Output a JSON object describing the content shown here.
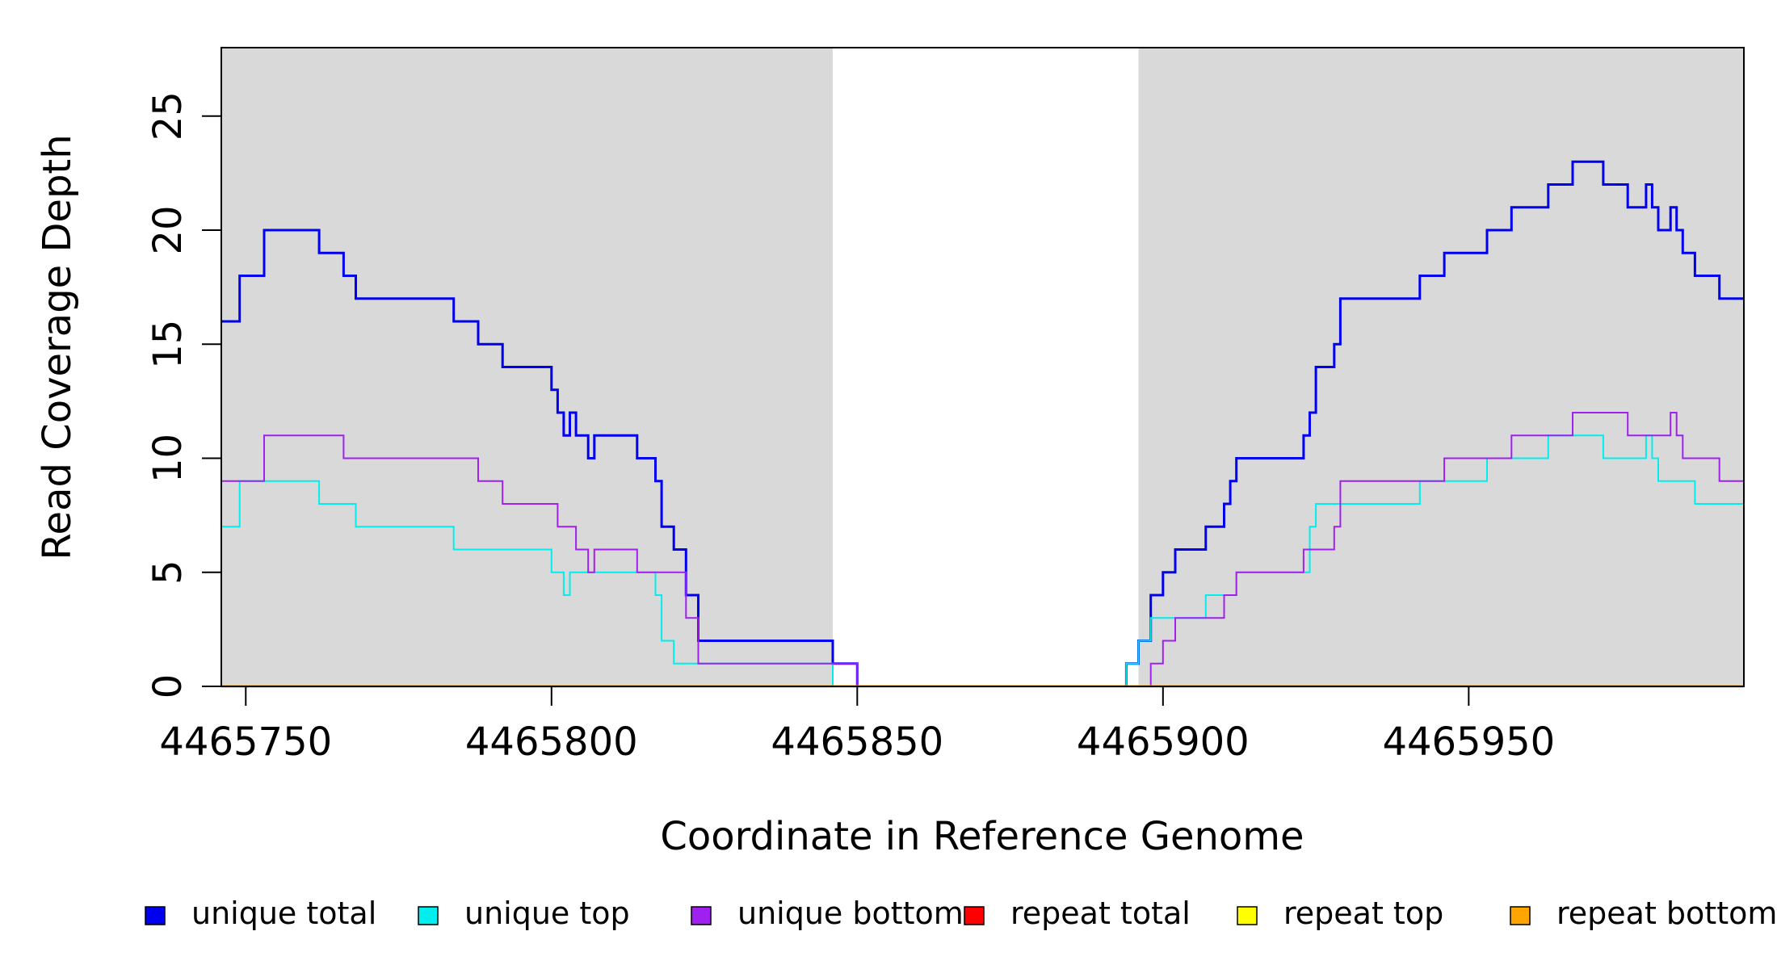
{
  "chart_data": {
    "type": "line",
    "step": true,
    "xlabel": "Coordinate in Reference Genome",
    "ylabel": "Read Coverage Depth",
    "xlim": [
      4465746,
      4465995
    ],
    "ylim": [
      0,
      28
    ],
    "x_ticks": [
      4465750,
      4465800,
      4465850,
      4465900,
      4465950
    ],
    "y_ticks": [
      0,
      5,
      10,
      15,
      20,
      25
    ],
    "shaded_regions": [
      {
        "from": 4465746,
        "to": 4465846,
        "color": "#d9d9d9"
      },
      {
        "from": 4465896,
        "to": 4465995,
        "color": "#d9d9d9"
      }
    ],
    "legend_position": "bottom",
    "series": [
      {
        "name": "unique total",
        "color": "#0000ee",
        "width": 3,
        "points": [
          [
            4465746,
            16
          ],
          [
            4465749,
            18
          ],
          [
            4465753,
            20
          ],
          [
            4465762,
            19
          ],
          [
            4465766,
            18
          ],
          [
            4465768,
            17
          ],
          [
            4465784,
            16
          ],
          [
            4465788,
            15
          ],
          [
            4465792,
            14
          ],
          [
            4465800,
            13
          ],
          [
            4465801,
            12
          ],
          [
            4465802,
            11
          ],
          [
            4465803,
            12
          ],
          [
            4465804,
            11
          ],
          [
            4465806,
            10
          ],
          [
            4465807,
            11
          ],
          [
            4465814,
            10
          ],
          [
            4465817,
            9
          ],
          [
            4465818,
            7
          ],
          [
            4465820,
            6
          ],
          [
            4465822,
            4
          ],
          [
            4465824,
            2
          ],
          [
            4465846,
            1
          ],
          [
            4465850,
            0
          ],
          [
            4465894,
            1
          ],
          [
            4465896,
            2
          ],
          [
            4465898,
            4
          ],
          [
            4465900,
            5
          ],
          [
            4465902,
            6
          ],
          [
            4465907,
            7
          ],
          [
            4465910,
            8
          ],
          [
            4465911,
            9
          ],
          [
            4465912,
            10
          ],
          [
            4465923,
            11
          ],
          [
            4465924,
            12
          ],
          [
            4465925,
            14
          ],
          [
            4465928,
            15
          ],
          [
            4465929,
            17
          ],
          [
            4465942,
            18
          ],
          [
            4465946,
            19
          ],
          [
            4465953,
            20
          ],
          [
            4465957,
            21
          ],
          [
            4465963,
            22
          ],
          [
            4465967,
            23
          ],
          [
            4465972,
            22
          ],
          [
            4465976,
            21
          ],
          [
            4465979,
            22
          ],
          [
            4465980,
            21
          ],
          [
            4465981,
            20
          ],
          [
            4465983,
            21
          ],
          [
            4465984,
            20
          ],
          [
            4465985,
            19
          ],
          [
            4465987,
            18
          ],
          [
            4465991,
            17
          ],
          [
            4465995,
            17
          ]
        ]
      },
      {
        "name": "unique top",
        "color": "#00eeee",
        "width": 2,
        "points": [
          [
            4465746,
            7
          ],
          [
            4465749,
            9
          ],
          [
            4465762,
            8
          ],
          [
            4465768,
            7
          ],
          [
            4465784,
            6
          ],
          [
            4465800,
            5
          ],
          [
            4465802,
            4
          ],
          [
            4465803,
            5
          ],
          [
            4465817,
            4
          ],
          [
            4465818,
            2
          ],
          [
            4465820,
            1
          ],
          [
            4465846,
            0
          ],
          [
            4465894,
            1
          ],
          [
            4465896,
            2
          ],
          [
            4465898,
            3
          ],
          [
            4465903,
            3
          ],
          [
            4465907,
            4
          ],
          [
            4465912,
            5
          ],
          [
            4465924,
            7
          ],
          [
            4465925,
            8
          ],
          [
            4465942,
            9
          ],
          [
            4465953,
            10
          ],
          [
            4465963,
            11
          ],
          [
            4465972,
            10
          ],
          [
            4465979,
            11
          ],
          [
            4465980,
            10
          ],
          [
            4465981,
            9
          ],
          [
            4465987,
            8
          ],
          [
            4465995,
            8
          ]
        ]
      },
      {
        "name": "unique bottom",
        "color": "#a020f0",
        "width": 2,
        "points": [
          [
            4465746,
            9
          ],
          [
            4465753,
            11
          ],
          [
            4465766,
            10
          ],
          [
            4465788,
            9
          ],
          [
            4465792,
            8
          ],
          [
            4465801,
            7
          ],
          [
            4465804,
            6
          ],
          [
            4465806,
            5
          ],
          [
            4465807,
            6
          ],
          [
            4465814,
            5
          ],
          [
            4465822,
            3
          ],
          [
            4465824,
            1
          ],
          [
            4465846,
            1
          ],
          [
            4465850,
            0
          ],
          [
            4465897,
            0
          ],
          [
            4465898,
            1
          ],
          [
            4465900,
            2
          ],
          [
            4465902,
            3
          ],
          [
            4465910,
            4
          ],
          [
            4465912,
            5
          ],
          [
            4465923,
            6
          ],
          [
            4465928,
            7
          ],
          [
            4465929,
            9
          ],
          [
            4465946,
            10
          ],
          [
            4465957,
            11
          ],
          [
            4465967,
            12
          ],
          [
            4465976,
            11
          ],
          [
            4465983,
            12
          ],
          [
            4465984,
            11
          ],
          [
            4465985,
            10
          ],
          [
            4465991,
            9
          ],
          [
            4465995,
            9
          ]
        ]
      },
      {
        "name": "repeat total",
        "color": "#ff0000",
        "width": 2,
        "points": [
          [
            4465746,
            0
          ],
          [
            4465995,
            0
          ]
        ]
      },
      {
        "name": "repeat top",
        "color": "#ffff00",
        "width": 2,
        "points": [
          [
            4465746,
            0
          ],
          [
            4465995,
            0
          ]
        ]
      },
      {
        "name": "repeat bottom",
        "color": "#ffa500",
        "width": 3,
        "points": [
          [
            4465746,
            0
          ],
          [
            4465995,
            0
          ]
        ]
      }
    ]
  }
}
